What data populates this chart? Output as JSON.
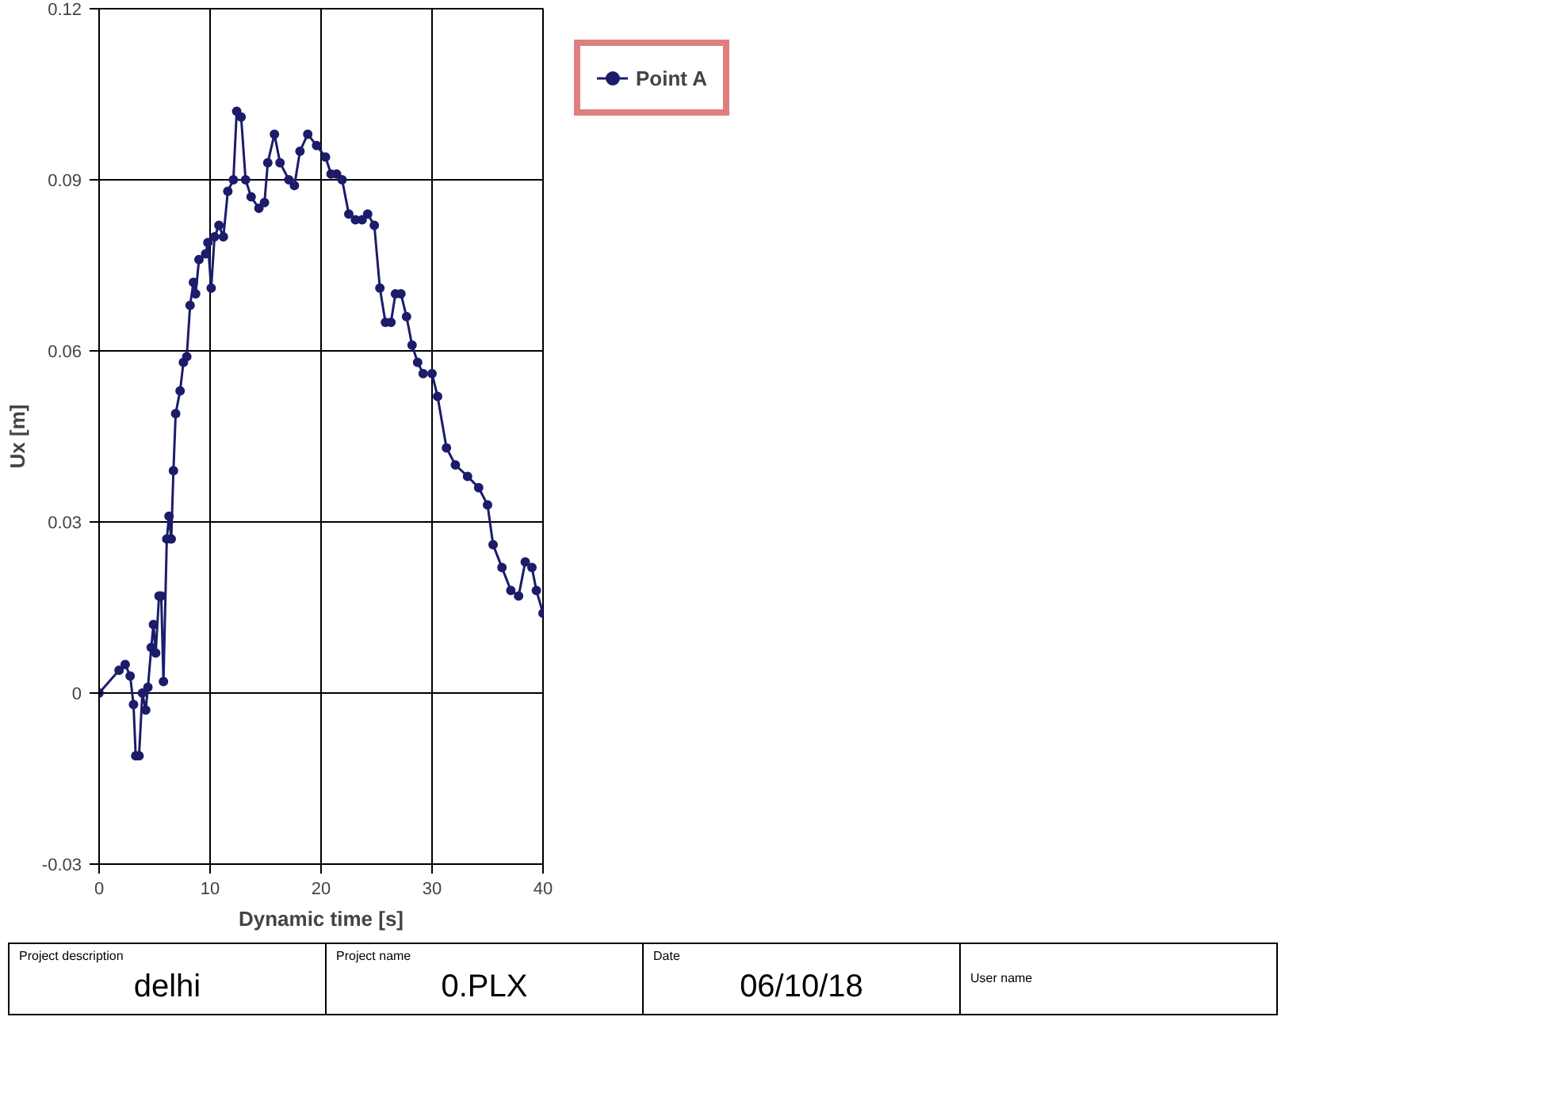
{
  "chart_data": {
    "type": "line",
    "xlabel": "Dynamic time [s]",
    "ylabel": "Ux [m]",
    "xlim": [
      0,
      40
    ],
    "xticks": [
      0,
      10,
      20,
      30,
      40
    ],
    "ylim": [
      -0.03,
      0.12
    ],
    "yticks": [
      -0.03,
      0,
      0.03,
      0.06,
      0.09,
      0.12
    ],
    "grid": true,
    "legend": "top right",
    "marker": "circle",
    "line_style": "solid",
    "series": [
      {
        "name": "Point A",
        "color": "#1c1c6b",
        "x": [
          0,
          1.8,
          2.35,
          2.8,
          3.1,
          3.3,
          3.6,
          3.9,
          4.2,
          4.4,
          4.7,
          4.9,
          5.1,
          5.4,
          5.6,
          5.8,
          6.1,
          6.3,
          6.5,
          6.7,
          6.9,
          7.3,
          7.6,
          7.9,
          8.2,
          8.5,
          8.7,
          9.0,
          9.6,
          9.8,
          10.1,
          10.4,
          10.8,
          11.2,
          11.6,
          12.1,
          12.4,
          12.8,
          13.2,
          13.7,
          14.4,
          14.9,
          15.2,
          15.8,
          16.3,
          17.1,
          17.6,
          18.1,
          18.8,
          19.6,
          20.4,
          20.9,
          21.4,
          21.9,
          22.5,
          23.1,
          23.7,
          24.2,
          24.8,
          25.3,
          25.8,
          26.3,
          26.7,
          27.2,
          27.7,
          28.2,
          28.7,
          29.2,
          30.0,
          30.5,
          31.3,
          32.1,
          33.2,
          34.2,
          35.0,
          35.5,
          36.3,
          37.1,
          37.8,
          38.4,
          39.0,
          39.4,
          40
        ],
        "values": [
          0,
          0.004,
          0.005,
          0.003,
          -0.002,
          -0.011,
          -0.011,
          0,
          -0.003,
          0.001,
          0.008,
          0.012,
          0.007,
          0.017,
          0.017,
          0.002,
          0.027,
          0.031,
          0.027,
          0.039,
          0.049,
          0.053,
          0.058,
          0.059,
          0.068,
          0.072,
          0.07,
          0.076,
          0.077,
          0.079,
          0.071,
          0.08,
          0.082,
          0.08,
          0.088,
          0.09,
          0.102,
          0.101,
          0.09,
          0.087,
          0.085,
          0.086,
          0.093,
          0.098,
          0.093,
          0.09,
          0.089,
          0.095,
          0.098,
          0.096,
          0.094,
          0.091,
          0.091,
          0.09,
          0.084,
          0.083,
          0.083,
          0.084,
          0.082,
          0.071,
          0.065,
          0.065,
          0.07,
          0.07,
          0.066,
          0.061,
          0.058,
          0.056,
          0.056,
          0.052,
          0.043,
          0.04,
          0.038,
          0.036,
          0.033,
          0.026,
          0.022,
          0.018,
          0.017,
          0.023,
          0.022,
          0.018,
          0.014
        ]
      }
    ],
    "annotations": [
      "Project description",
      "delhi",
      "Project name",
      "0.PLX",
      "Date",
      "06/10/18",
      "User name"
    ]
  }
}
